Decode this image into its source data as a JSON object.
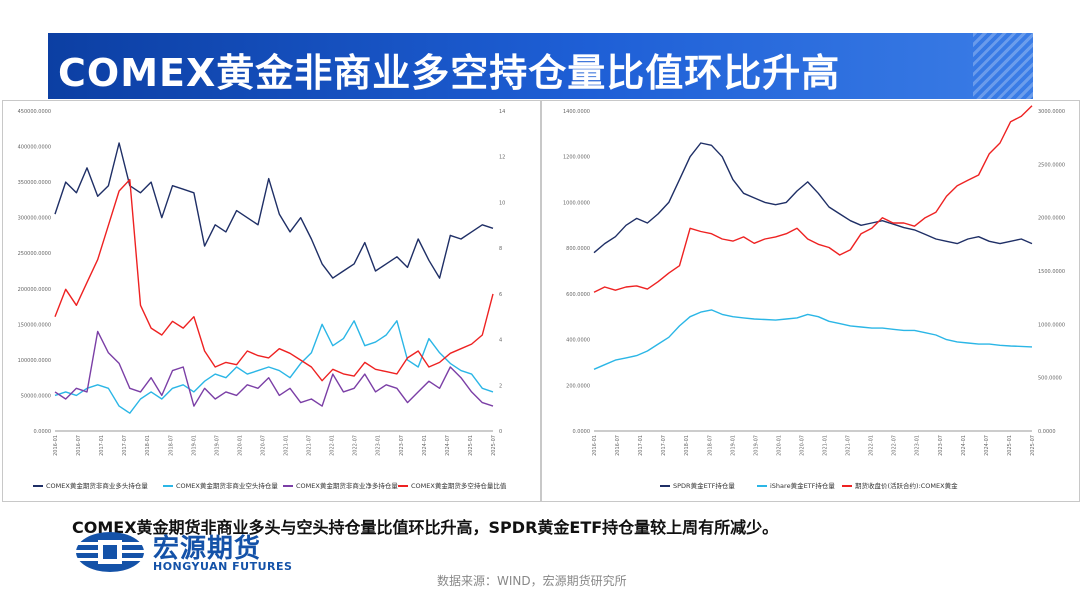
{
  "header": {
    "title": "COMEX黄金非商业多空持仓量比值环比升高"
  },
  "caption": "COMEX黄金期货非商业多头与空头持仓量比值环比升高，SPDR黄金ETF持仓量较上周有所减少。",
  "logo": {
    "cn": "宏源期货",
    "en": "HONGYUAN FUTURES"
  },
  "source": "数据来源：WIND，宏源期货研究所",
  "chart_data": [
    {
      "type": "line",
      "left_axis": {
        "ticks": [
          "0.0000",
          "50000.0000",
          "100000.0000",
          "150000.0000",
          "200000.0000",
          "250000.0000",
          "300000.0000",
          "350000.0000",
          "400000.0000",
          "450000.0000"
        ],
        "ylim": [
          0,
          450000
        ]
      },
      "right_axis": {
        "ticks": [
          "0",
          "2",
          "4",
          "6",
          "8",
          "10",
          "12",
          "14"
        ],
        "ylim": [
          0,
          14
        ]
      },
      "x_ticks": [
        "2016-01",
        "2016-07",
        "2017-01",
        "2017-07",
        "2018-01",
        "2018-07",
        "2019-01",
        "2019-07",
        "2020-01",
        "2020-07",
        "2021-01",
        "2021-07",
        "2022-01",
        "2022-07",
        "2023-01",
        "2023-07",
        "2024-01",
        "2024-07",
        "2025-01",
        "2025-07"
      ],
      "series": [
        {
          "name": "COMEX黄金期货非商业多头持仓量",
          "axis": "left",
          "color": "#1f2f66",
          "values": [
            305000,
            350000,
            335000,
            370000,
            330000,
            345000,
            405000,
            345000,
            335000,
            350000,
            300000,
            345000,
            340000,
            335000,
            260000,
            290000,
            280000,
            310000,
            300000,
            290000,
            355000,
            305000,
            280000,
            300000,
            270000,
            235000,
            215000,
            225000,
            235000,
            265000,
            225000,
            235000,
            245000,
            230000,
            270000,
            240000,
            215000,
            275000,
            270000,
            280000,
            290000,
            285000
          ]
        },
        {
          "name": "COMEX黄金期货非商业空头持仓量",
          "axis": "left",
          "color": "#2bb6e6",
          "values": [
            50000,
            55000,
            50000,
            60000,
            65000,
            60000,
            35000,
            25000,
            45000,
            55000,
            45000,
            60000,
            65000,
            55000,
            70000,
            80000,
            75000,
            90000,
            80000,
            85000,
            90000,
            85000,
            75000,
            95000,
            110000,
            150000,
            120000,
            130000,
            155000,
            120000,
            125000,
            135000,
            155000,
            100000,
            90000,
            130000,
            110000,
            95000,
            85000,
            80000,
            60000,
            55000
          ]
        },
        {
          "name": "COMEX黄金期货非商业净多持仓量",
          "axis": "left",
          "color": "#7b3fa6",
          "values": [
            55000,
            45000,
            60000,
            55000,
            140000,
            110000,
            95000,
            60000,
            55000,
            75000,
            50000,
            85000,
            90000,
            35000,
            60000,
            45000,
            55000,
            50000,
            65000,
            60000,
            75000,
            50000,
            60000,
            40000,
            45000,
            35000,
            80000,
            55000,
            60000,
            80000,
            55000,
            65000,
            60000,
            40000,
            55000,
            70000,
            60000,
            90000,
            75000,
            55000,
            40000,
            35000
          ]
        },
        {
          "name": "COMEX黄金期货多空持仓量比值",
          "axis": "right",
          "color": "#ee2222",
          "values": [
            5.0,
            6.2,
            5.5,
            6.5,
            7.5,
            9.0,
            10.5,
            11.0,
            5.5,
            4.5,
            4.2,
            4.8,
            4.5,
            5.0,
            3.5,
            2.8,
            3.0,
            2.9,
            3.5,
            3.3,
            3.2,
            3.6,
            3.4,
            3.1,
            2.8,
            2.2,
            2.7,
            2.5,
            2.4,
            3.0,
            2.7,
            2.6,
            2.5,
            3.2,
            3.5,
            2.8,
            3.0,
            3.4,
            3.6,
            3.8,
            4.2,
            6.0
          ]
        }
      ]
    },
    {
      "type": "line",
      "left_axis": {
        "ticks": [
          "0.0000",
          "200.0000",
          "400.0000",
          "600.0000",
          "800.0000",
          "1000.0000",
          "1200.0000",
          "1400.0000"
        ],
        "ylim": [
          0,
          1400
        ]
      },
      "right_axis": {
        "ticks": [
          "0.0000",
          "500.0000",
          "1000.0000",
          "1500.0000",
          "2000.0000",
          "2500.0000",
          "3000.0000"
        ],
        "ylim": [
          0,
          3000
        ]
      },
      "x_ticks": [
        "2016-01",
        "2016-07",
        "2017-01",
        "2017-07",
        "2018-01",
        "2018-07",
        "2019-01",
        "2019-07",
        "2020-01",
        "2020-07",
        "2021-01",
        "2021-07",
        "2022-01",
        "2022-07",
        "2023-01",
        "2023-07",
        "2024-01",
        "2024-07",
        "2025-01",
        "2025-07"
      ],
      "series": [
        {
          "name": "SPDR黄金ETF持仓量",
          "axis": "left",
          "color": "#1f2f66",
          "values": [
            780,
            820,
            850,
            900,
            930,
            910,
            950,
            1000,
            1100,
            1200,
            1260,
            1250,
            1200,
            1100,
            1040,
            1020,
            1000,
            990,
            1000,
            1050,
            1090,
            1040,
            980,
            950,
            920,
            900,
            910,
            920,
            905,
            890,
            880,
            860,
            840,
            830,
            820,
            840,
            850,
            830,
            820,
            830,
            840,
            820
          ]
        },
        {
          "name": "iShare黄金ETF持仓量",
          "axis": "left",
          "color": "#2bb6e6",
          "values": [
            270,
            290,
            310,
            320,
            330,
            350,
            380,
            410,
            460,
            500,
            520,
            530,
            510,
            500,
            495,
            490,
            488,
            485,
            490,
            495,
            510,
            500,
            480,
            470,
            460,
            455,
            450,
            450,
            445,
            440,
            440,
            430,
            420,
            400,
            390,
            385,
            380,
            380,
            375,
            372,
            370,
            368
          ]
        },
        {
          "name": "期货收盘价(活跃合约):COMEX黄金",
          "axis": "right",
          "color": "#ee2222",
          "values": [
            1300,
            1350,
            1320,
            1350,
            1360,
            1330,
            1400,
            1480,
            1550,
            1900,
            1870,
            1850,
            1800,
            1780,
            1820,
            1760,
            1800,
            1820,
            1850,
            1900,
            1800,
            1750,
            1720,
            1650,
            1700,
            1850,
            1900,
            2000,
            1950,
            1950,
            1920,
            2000,
            2050,
            2200,
            2300,
            2350,
            2400,
            2600,
            2700,
            2900,
            2950,
            3050
          ]
        }
      ]
    }
  ]
}
